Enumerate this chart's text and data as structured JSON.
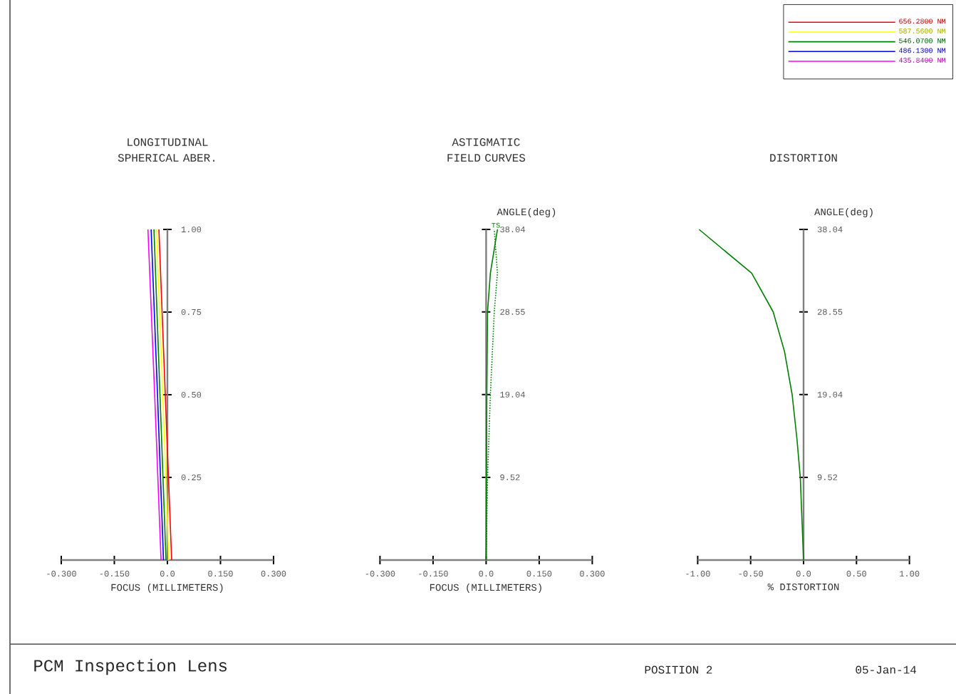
{
  "chart_data": [
    {
      "type": "line",
      "title": "LONGITUDINAL SPHERICAL ABER.",
      "xlabel": "FOCUS (MILLIMETERS)",
      "xlim": [
        -0.3,
        0.3
      ],
      "ylim": [
        0,
        1
      ],
      "xticks": [
        {
          "value": -0.3,
          "label": "-0.300"
        },
        {
          "value": -0.15,
          "label": "-0.150"
        },
        {
          "value": 0,
          "label": "0.0"
        },
        {
          "value": 0.15,
          "label": "0.150"
        },
        {
          "value": 0.3,
          "label": "0.300"
        }
      ],
      "yticks": [
        {
          "value": 0.25,
          "label": "0.25"
        },
        {
          "value": 0.5,
          "label": "0.50"
        },
        {
          "value": 0.75,
          "label": "0.75"
        },
        {
          "value": 1,
          "label": "1.00"
        }
      ],
      "legend": "top right",
      "series": [
        {
          "name": "656.2800 NM",
          "color": "#ff0000",
          "x": [
            0.012,
            -0.006,
            -0.024
          ],
          "values": [
            0,
            0.5,
            1
          ]
        },
        {
          "name": "587.5600 NM",
          "color": "#ffff00",
          "x": [
            0.004,
            -0.013,
            -0.031
          ],
          "values": [
            0,
            0.5,
            1
          ]
        },
        {
          "name": "546.0700 NM",
          "color": "#008000",
          "x": [
            -0.004,
            -0.021,
            -0.038
          ],
          "values": [
            0,
            0.5,
            1
          ]
        },
        {
          "name": "486.1300 NM",
          "color": "#0000ff",
          "x": [
            -0.011,
            -0.028,
            -0.046
          ],
          "values": [
            0,
            0.5,
            1
          ]
        },
        {
          "name": "435.8400 NM",
          "color": "#ff00ff",
          "x": [
            -0.018,
            -0.036,
            -0.055
          ],
          "values": [
            0,
            0.5,
            1
          ]
        }
      ],
      "annotations": [
        "PCM Inspection Lens"
      ]
    },
    {
      "type": "line",
      "title": "ASTIGMATIC FIELD CURVES",
      "xlabel": "FOCUS (MILLIMETERS)",
      "ylabel": "ANGLE(deg)",
      "xlim": [
        -0.3,
        0.3
      ],
      "ylim": [
        0,
        38.04
      ],
      "xticks": [
        {
          "value": -0.3,
          "label": "-0.300"
        },
        {
          "value": -0.15,
          "label": "-0.150"
        },
        {
          "value": 0,
          "label": "0.0"
        },
        {
          "value": 0.15,
          "label": "0.150"
        },
        {
          "value": 0.3,
          "label": "0.300"
        }
      ],
      "yticks": [
        9.52,
        19.04,
        28.55,
        38.04
      ],
      "series": [
        {
          "name": "T",
          "color": "#008000",
          "line_style": "solid",
          "x": [
            0,
            0.001,
            0.002,
            0.004,
            0.012,
            0.032
          ],
          "values": [
            0,
            9.52,
            19.04,
            28.55,
            33,
            38.04
          ]
        },
        {
          "name": "S",
          "color": "#008000",
          "line_style": "dotted",
          "x": [
            0,
            0.004,
            0.012,
            0.023,
            0.032,
            0.023
          ],
          "values": [
            0,
            9.52,
            19.04,
            28.55,
            33,
            38.04
          ]
        }
      ]
    },
    {
      "type": "line",
      "title": "DISTORTION",
      "xlabel": "% DISTORTION",
      "ylabel": "ANGLE(deg)",
      "xlim": [
        -1,
        1
      ],
      "ylim": [
        0,
        38.04
      ],
      "xticks": [
        {
          "value": -1,
          "label": "-1.00"
        },
        {
          "value": -0.5,
          "label": "-0.50"
        },
        {
          "value": 0,
          "label": "0.0"
        },
        {
          "value": 0.5,
          "label": "0.50"
        },
        {
          "value": 1,
          "label": "1.00"
        }
      ],
      "yticks": [
        9.52,
        19.04,
        28.55,
        38.04
      ],
      "series": [
        {
          "color": "#008000",
          "x": [
            0,
            -0.031,
            -0.063,
            -0.108,
            -0.18,
            -0.287,
            -0.49,
            -0.987
          ],
          "values": [
            0,
            9.52,
            14,
            19.04,
            24,
            28.55,
            33,
            38.04
          ]
        }
      ],
      "annotations": [
        "POSITION 2",
        "05-Jan-14"
      ]
    }
  ]
}
